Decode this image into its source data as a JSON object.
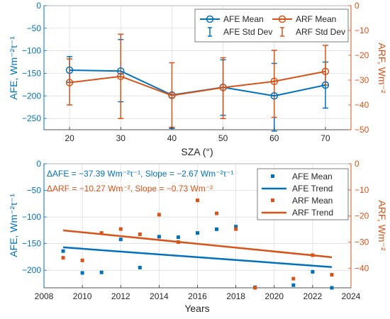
{
  "colors": {
    "afe": "#0072BD",
    "arf": "#D95319",
    "axis": "#262626",
    "grid": "#d9d9d9"
  },
  "chart_data": [
    {
      "type": "line",
      "xlabel": "SZA (°)",
      "ylabel_left": "AFE, Wm⁻²τ⁻¹",
      "ylabel_right": "ARF, Wm⁻²",
      "x": [
        20,
        30,
        40,
        50,
        60,
        70
      ],
      "xlim": [
        15,
        75
      ],
      "ylim_left": [
        -275,
        0
      ],
      "ylim_right": [
        -50,
        0
      ],
      "xticks": [
        "20",
        "30",
        "40",
        "50",
        "60",
        "70"
      ],
      "yticks_left": [
        "0",
        "−50",
        "−100",
        "−150",
        "−200",
        "−250"
      ],
      "yticks_right": [
        "0",
        "−10",
        "−20",
        "−30",
        "−40",
        "−50"
      ],
      "grid": true,
      "legend": "top-right",
      "series": [
        {
          "name": "AFE Mean",
          "axis": "left",
          "values": [
            -143,
            -145,
            -198,
            -181,
            -200,
            -176
          ]
        },
        {
          "name": "AFE Std Dev",
          "axis": "left",
          "err_low": [
            -113,
            -75,
            -272,
            -120,
            -128,
            -125
          ],
          "err_high": [
            -170,
            -213,
            -272,
            -243,
            -278,
            -227
          ]
        },
        {
          "name": "ARF Mean",
          "axis": "right",
          "values": [
            -31,
            -28.5,
            -36.2,
            -33,
            -30.5,
            -26.5
          ]
        },
        {
          "name": "ARF Std Dev",
          "axis": "right",
          "err_low": [
            -21.5,
            -11.5,
            -23,
            -21,
            -18,
            -16
          ],
          "err_high": [
            -40,
            -45.5,
            -49,
            -45.5,
            -45,
            -32
          ]
        }
      ]
    },
    {
      "type": "scatter",
      "xlabel": "Years",
      "ylabel_left": "AFE, Wm⁻²τ⁻¹",
      "ylabel_right": "ARF, Wm⁻²",
      "xlim": [
        2008,
        2024
      ],
      "ylim_left": [
        -233,
        0
      ],
      "ylim_right": [
        -47.5,
        0
      ],
      "xticks": [
        "2008",
        "2010",
        "2012",
        "2014",
        "2016",
        "2018",
        "2020",
        "2022",
        "2024"
      ],
      "yticks_left": [
        "0",
        "−50",
        "−100",
        "−150",
        "−200"
      ],
      "yticks_right": [
        "0",
        "−10",
        "−20",
        "−30",
        "−40"
      ],
      "grid": true,
      "legend": "top-right",
      "annotations": [
        {
          "text": "ΔAFE = −37.39 Wm⁻²τ⁻¹, Slope = −2.67 Wm⁻²τ⁻¹",
          "color": "#0072BD"
        },
        {
          "text": "ΔARF = −10.27 Wm⁻², Slope = −0.73 Wm⁻²",
          "color": "#D95319"
        }
      ],
      "series": [
        {
          "name": "AFE Mean",
          "axis": "left",
          "marker": "square",
          "x": [
            2009,
            2010,
            2011,
            2012,
            2013,
            2014,
            2015,
            2016,
            2017,
            2018,
            2019,
            2021,
            2022,
            2023
          ],
          "values": [
            -164,
            -205,
            -204,
            -142,
            -195,
            -137,
            -138,
            -130,
            -123,
            -118,
            -232,
            -228,
            -203,
            -233
          ]
        },
        {
          "name": "AFE Trend",
          "axis": "left",
          "type": "line",
          "x": [
            2009,
            2023
          ],
          "values": [
            -157,
            -194
          ]
        },
        {
          "name": "ARF Mean",
          "axis": "right",
          "marker": "square",
          "x": [
            2009,
            2010,
            2011,
            2012,
            2013,
            2014,
            2015,
            2016,
            2017,
            2018,
            2019,
            2021,
            2022,
            2023
          ],
          "values": [
            -36,
            -37,
            -26.5,
            -25,
            -27,
            -19.5,
            -30,
            -14,
            -19,
            -25,
            -47.5,
            -44,
            -35,
            -42.5
          ]
        },
        {
          "name": "ARF Trend",
          "axis": "right",
          "type": "line",
          "x": [
            2009,
            2023
          ],
          "values": [
            -25.5,
            -35.8
          ]
        }
      ]
    }
  ]
}
